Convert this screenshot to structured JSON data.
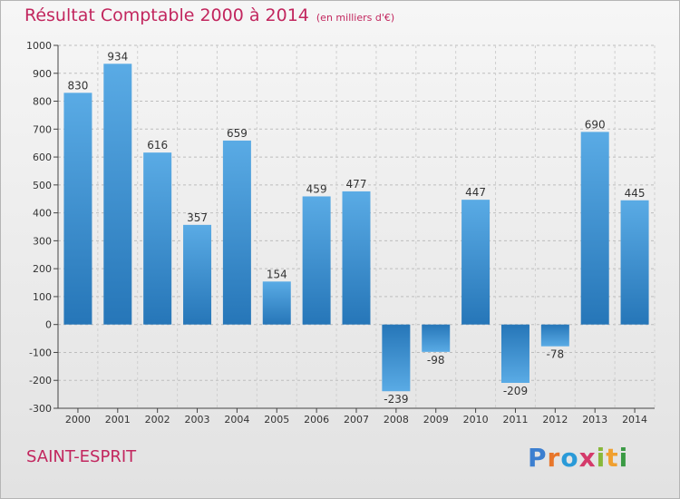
{
  "header": {
    "title": "Résultat Comptable 2000 à 2014",
    "unit": "(en milliers d'€)"
  },
  "footer": {
    "commune": "SAINT-ESPRIT",
    "brand_letters": [
      "P",
      "r",
      "o",
      "x",
      "i",
      "t",
      "i"
    ]
  },
  "colors": {
    "bar_top": "#5aabe5",
    "bar_bottom": "#2676b8",
    "title": "#c2265e",
    "brand": [
      "#3c7fd0",
      "#e8762b",
      "#2a9ad8",
      "#d43a6a",
      "#88b83a",
      "#f0a030",
      "#3a9a44"
    ]
  },
  "chart_data": {
    "type": "bar",
    "categories": [
      "2000",
      "2001",
      "2002",
      "2003",
      "2004",
      "2005",
      "2006",
      "2007",
      "2008",
      "2009",
      "2010",
      "2011",
      "2012",
      "2013",
      "2014"
    ],
    "values": [
      830,
      934,
      616,
      357,
      659,
      154,
      459,
      477,
      -239,
      -98,
      447,
      -209,
      -78,
      690,
      445
    ],
    "ylim": [
      -300,
      1000
    ],
    "yticks": [
      -300,
      -200,
      -100,
      0,
      100,
      200,
      300,
      400,
      500,
      600,
      700,
      800,
      900,
      1000
    ],
    "grid": "horizontal dashed"
  }
}
